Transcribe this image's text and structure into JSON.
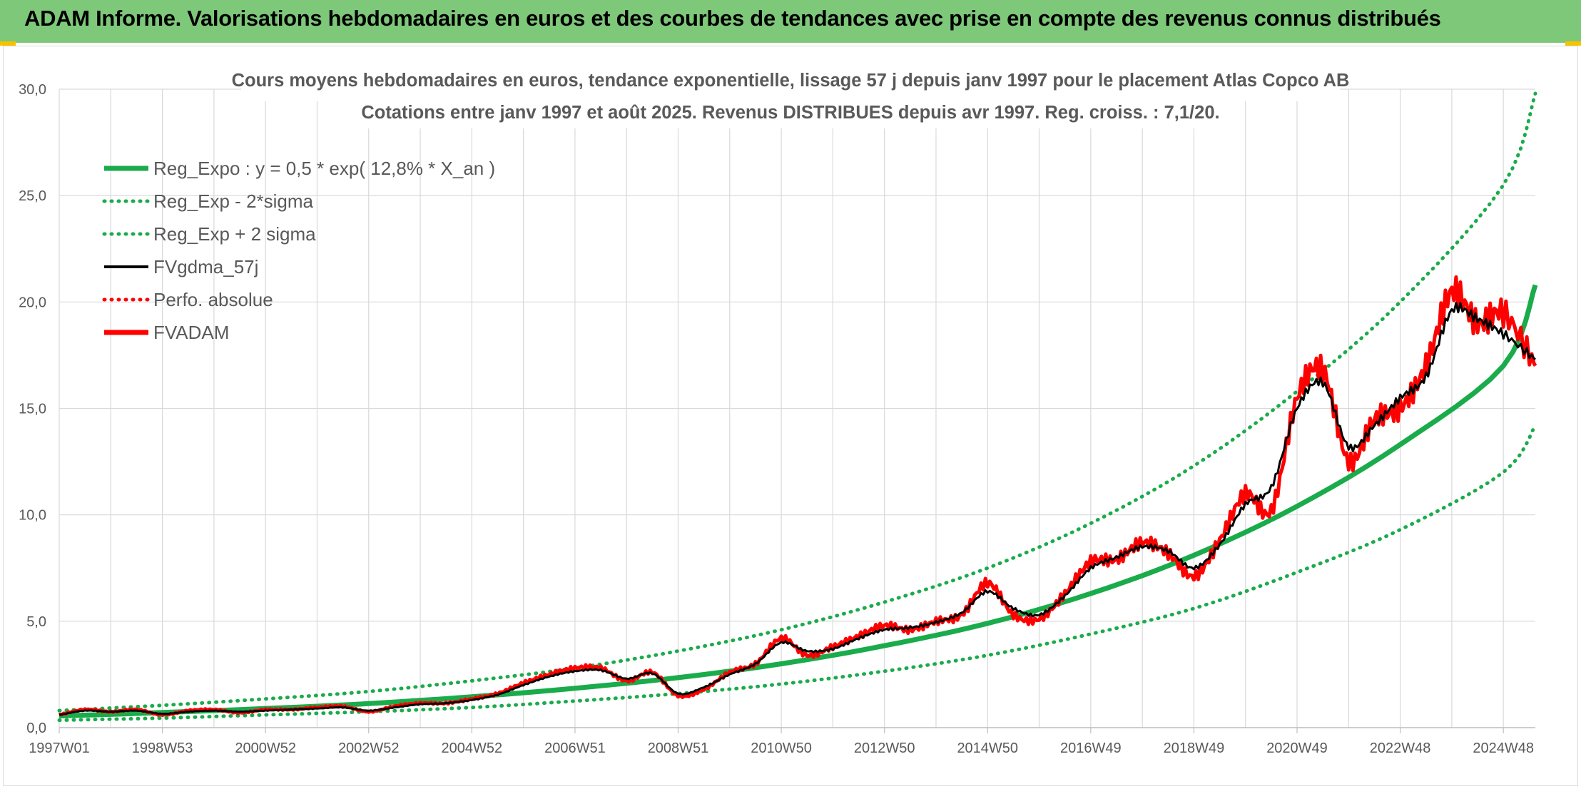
{
  "banner": {
    "title": "ADAM Informe. Valorisations hebdomadaires en euros et des courbes de tendances avec prise en compte des revenus connus distribués"
  },
  "colors": {
    "banner_bg": "#7ec87a",
    "reg_expo": "#1aab4b",
    "sigma": "#1aab4b",
    "fvgdma": "#000000",
    "perfo": "#ff0000",
    "fvadam": "#ff0000",
    "grid": "#d9d9d9",
    "text": "#595959"
  },
  "chart_data": {
    "type": "line",
    "title": "Cours moyens hebdomadaires en euros, tendance exponentielle, lissage 57 j depuis janv 1997 pour le placement Atlas Copco AB",
    "subtitle": "Cotations entre janv 1997 et août 2025. Revenus DISTRIBUES depuis avr 1997. Reg. croiss. : 7,1/20.",
    "xlabel": "",
    "ylabel": "",
    "ylim": [
      0,
      30
    ],
    "xlim": [
      1997.0,
      2025.62
    ],
    "yticks": [
      "0,0",
      "5,0",
      "10,0",
      "15,0",
      "20,0",
      "25,0",
      "30,0"
    ],
    "ytick_values": [
      0,
      5,
      10,
      15,
      20,
      25,
      30
    ],
    "xticks": [
      "1997W01",
      "1998W53",
      "2000W52",
      "2002W52",
      "2004W52",
      "2006W51",
      "2008W51",
      "2010W50",
      "2012W50",
      "2014W50",
      "2016W49",
      "2018W49",
      "2020W49",
      "2022W48",
      "2024W48"
    ],
    "xtick_positions": [
      1997.0,
      1999.0,
      2001.0,
      2003.0,
      2005.0,
      2007.0,
      2009.0,
      2011.0,
      2013.0,
      2015.0,
      2017.0,
      2019.0,
      2021.0,
      2023.0,
      2025.0
    ],
    "grid": true,
    "legend_position": "top-left",
    "legend": [
      {
        "label": "Reg_Expo : y = 0,5 * exp( 12,8% *  X_an )",
        "style": "solid-thick",
        "color": "#1aab4b"
      },
      {
        "label": "Reg_Exp - 2*sigma",
        "style": "dotted",
        "color": "#1aab4b"
      },
      {
        "label": "Reg_Exp + 2 sigma",
        "style": "dotted",
        "color": "#1aab4b"
      },
      {
        "label": "FVgdma_57j",
        "style": "solid",
        "color": "#000000"
      },
      {
        "label": "Perfo. absolue",
        "style": "dotted",
        "color": "#ff0000"
      },
      {
        "label": "FVADAM",
        "style": "solid-thick",
        "color": "#ff0000"
      }
    ],
    "series": [
      {
        "name": "Reg_Expo : y = 0,5 * exp( 12,8% *  X_an )",
        "x": [
          1997.0,
          1999.0,
          2001.0,
          2003.0,
          2005.0,
          2007.0,
          2009.0,
          2011.0,
          2013.0,
          2015.0,
          2017.0,
          2019.0,
          2021.0,
          2023.0,
          2025.0,
          2025.62
        ],
        "y": [
          0.55,
          0.71,
          0.9,
          1.13,
          1.45,
          1.85,
          2.35,
          3.0,
          3.85,
          4.9,
          6.3,
          8.1,
          10.4,
          13.3,
          17.0,
          20.8
        ]
      },
      {
        "name": "Reg_Exp - 2*sigma",
        "x": [
          1997.0,
          1999.0,
          2001.0,
          2003.0,
          2005.0,
          2007.0,
          2009.0,
          2011.0,
          2013.0,
          2015.0,
          2017.0,
          2019.0,
          2021.0,
          2023.0,
          2025.0,
          2025.62
        ],
        "y": [
          0.35,
          0.45,
          0.6,
          0.75,
          0.95,
          1.25,
          1.6,
          2.05,
          2.65,
          3.4,
          4.4,
          5.6,
          7.3,
          9.3,
          12.0,
          14.2
        ]
      },
      {
        "name": "Reg_Exp + 2 sigma",
        "x": [
          1997.0,
          1999.0,
          2001.0,
          2003.0,
          2005.0,
          2007.0,
          2009.0,
          2011.0,
          2013.0,
          2015.0,
          2017.0,
          2019.0,
          2021.0,
          2023.0,
          2025.0,
          2025.62
        ],
        "y": [
          0.8,
          1.05,
          1.35,
          1.7,
          2.2,
          2.8,
          3.6,
          4.6,
          5.9,
          7.5,
          9.6,
          12.3,
          15.8,
          20.0,
          25.5,
          29.8
        ]
      },
      {
        "name": "FVgdma_57j",
        "x": [
          1997.0,
          1997.5,
          1998.0,
          1998.5,
          1999.0,
          1999.5,
          2000.0,
          2000.5,
          2001.0,
          2001.5,
          2002.0,
          2002.5,
          2003.0,
          2003.5,
          2004.0,
          2004.5,
          2005.0,
          2005.5,
          2006.0,
          2006.5,
          2007.0,
          2007.5,
          2008.0,
          2008.5,
          2009.0,
          2009.5,
          2010.0,
          2010.5,
          2011.0,
          2011.5,
          2012.0,
          2012.5,
          2013.0,
          2013.5,
          2014.0,
          2014.5,
          2015.0,
          2015.5,
          2016.0,
          2016.5,
          2017.0,
          2017.5,
          2018.0,
          2018.5,
          2019.0,
          2019.5,
          2020.0,
          2020.5,
          2021.0,
          2021.5,
          2022.0,
          2022.5,
          2023.0,
          2023.5,
          2024.0,
          2024.5,
          2025.0,
          2025.62
        ],
        "y": [
          0.6,
          0.8,
          0.75,
          0.8,
          0.65,
          0.75,
          0.8,
          0.75,
          0.8,
          0.85,
          0.9,
          0.95,
          0.8,
          0.95,
          1.1,
          1.15,
          1.3,
          1.55,
          2.0,
          2.4,
          2.65,
          2.7,
          2.3,
          2.55,
          1.6,
          1.9,
          2.5,
          3.0,
          4.0,
          3.6,
          3.7,
          4.2,
          4.6,
          4.7,
          4.95,
          5.4,
          6.4,
          5.6,
          5.3,
          6.2,
          7.5,
          8.0,
          8.5,
          8.3,
          7.5,
          8.6,
          10.5,
          11.3,
          15.0,
          16.2,
          13.2,
          14.2,
          15.5,
          16.5,
          19.6,
          19.2,
          18.5,
          17.3
        ]
      },
      {
        "name": "Perfo. absolue",
        "x": [],
        "y": []
      },
      {
        "name": "FVADAM",
        "x": [
          1997.0,
          1997.5,
          1998.0,
          1998.5,
          1999.0,
          1999.5,
          2000.0,
          2000.5,
          2001.0,
          2001.5,
          2002.0,
          2002.5,
          2003.0,
          2003.5,
          2004.0,
          2004.5,
          2005.0,
          2005.5,
          2006.0,
          2006.5,
          2007.0,
          2007.5,
          2008.0,
          2008.5,
          2009.0,
          2009.5,
          2010.0,
          2010.5,
          2011.0,
          2011.5,
          2012.0,
          2012.5,
          2013.0,
          2013.5,
          2014.0,
          2014.5,
          2015.0,
          2015.5,
          2016.0,
          2016.5,
          2017.0,
          2017.5,
          2018.0,
          2018.5,
          2019.0,
          2019.5,
          2020.0,
          2020.5,
          2021.0,
          2021.5,
          2022.0,
          2022.5,
          2023.0,
          2023.5,
          2024.0,
          2024.5,
          2025.0,
          2025.62
        ],
        "y": [
          0.6,
          0.85,
          0.75,
          0.85,
          0.6,
          0.8,
          0.85,
          0.7,
          0.85,
          0.85,
          0.95,
          1.0,
          0.75,
          1.0,
          1.15,
          1.15,
          1.35,
          1.6,
          2.1,
          2.5,
          2.8,
          2.8,
          2.2,
          2.6,
          1.5,
          1.8,
          2.6,
          3.0,
          4.2,
          3.4,
          3.8,
          4.3,
          4.8,
          4.6,
          5.0,
          5.3,
          6.8,
          5.3,
          5.1,
          6.3,
          7.8,
          7.9,
          8.7,
          8.2,
          7.1,
          8.8,
          11.0,
          10.2,
          15.5,
          16.8,
          12.5,
          14.5,
          15.0,
          17.0,
          20.5,
          19.0,
          19.5,
          17.0
        ]
      }
    ]
  }
}
